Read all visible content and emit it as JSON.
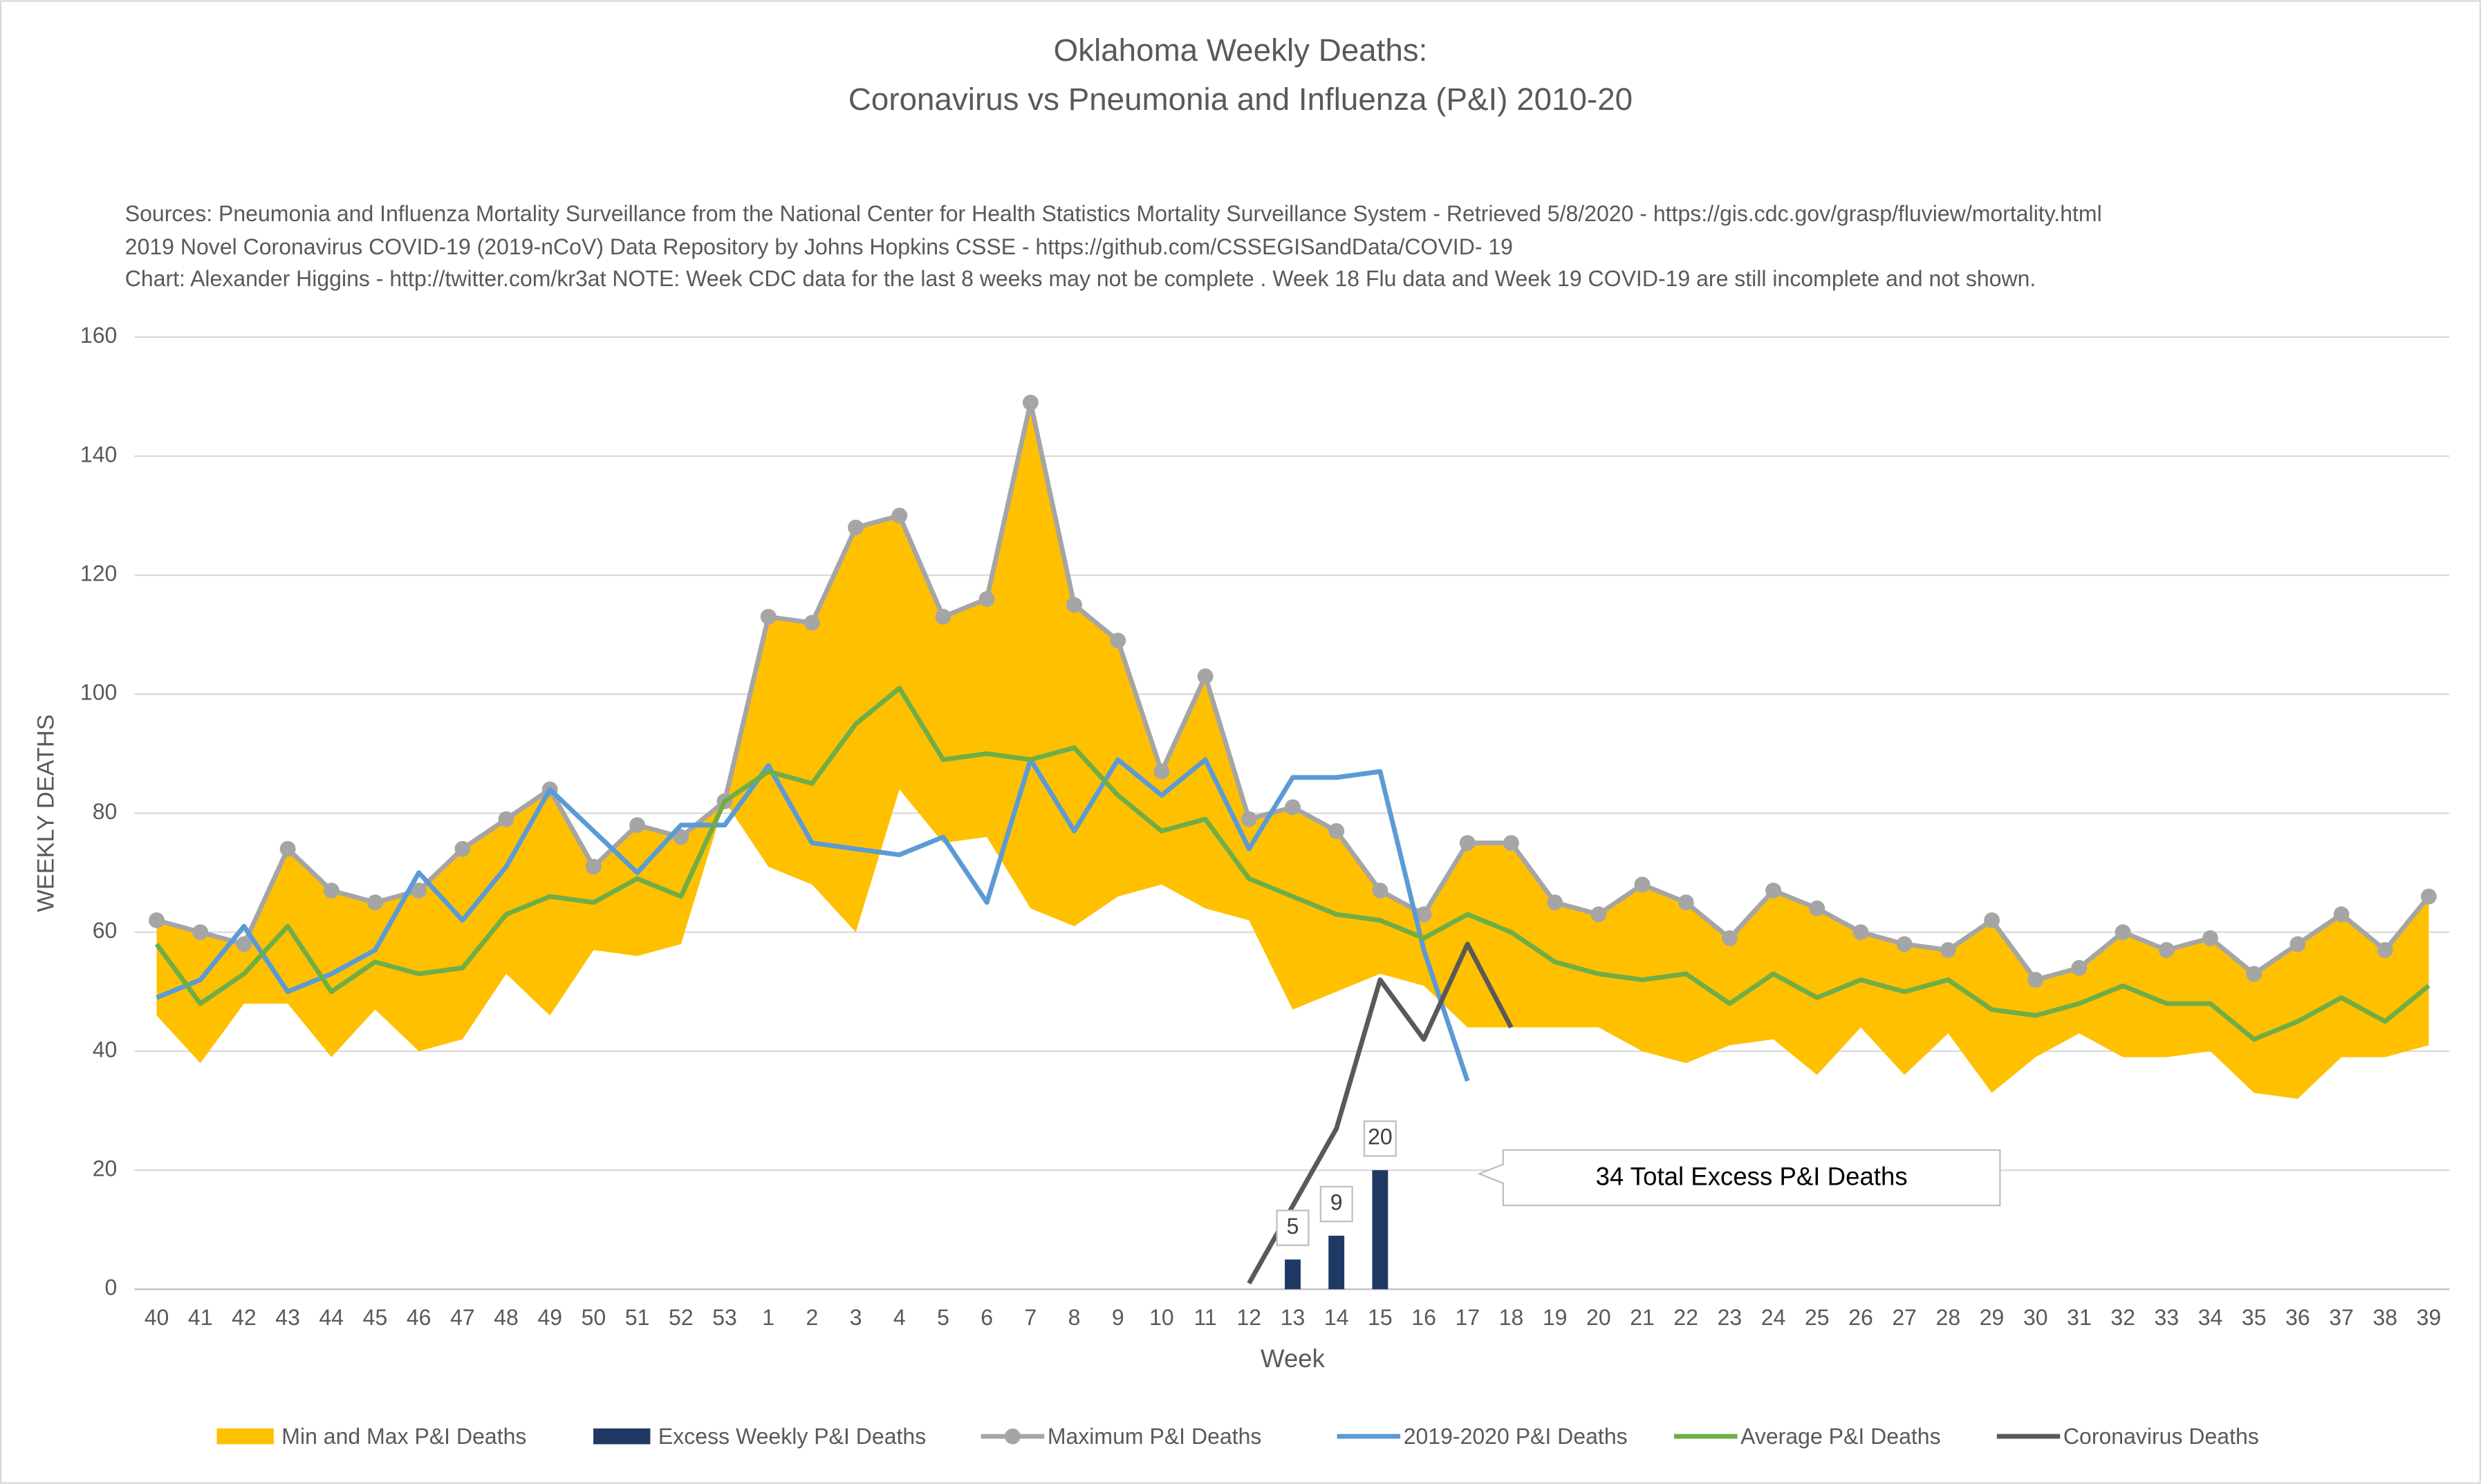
{
  "chart_data": {
    "type": "line",
    "title": [
      "Oklahoma Weekly Deaths:",
      "Coronavirus vs Pneumonia and Influenza (P&I) 2010-20"
    ],
    "subtitle": [
      "Sources: Pneumonia and Influenza Mortality Surveillance from the National Center for Health Statistics Mortality Surveillance System - Retrieved 5/8/2020 - https://gis.cdc.gov/grasp/fluview/mortality.html",
      "2019 Novel Coronavirus COVID-19 (2019-nCoV) Data Repository by Johns Hopkins CSSE - https://github.com/CSSEGISandData/COVID- 19",
      "Chart: Alexander Higgins - http://twitter.com/kr3at   NOTE: Week CDC data for the last 8 weeks may not be complete . Week 18 Flu data and Week 19 COVID-19 are still incomplete and not shown."
    ],
    "x_label": "Week",
    "y_label": "WEEKLY DEATHS",
    "annotation": "34 Total Excess P&I Deaths",
    "categories": [
      "40",
      "41",
      "42",
      "43",
      "44",
      "45",
      "46",
      "47",
      "48",
      "49",
      "50",
      "51",
      "52",
      "53",
      "1",
      "2",
      "3",
      "4",
      "5",
      "6",
      "7",
      "8",
      "9",
      "10",
      "11",
      "12",
      "13",
      "14",
      "15",
      "16",
      "17",
      "18",
      "19",
      "20",
      "21",
      "22",
      "23",
      "24",
      "25",
      "26",
      "27",
      "28",
      "29",
      "30",
      "31",
      "32",
      "33",
      "34",
      "35",
      "36",
      "37",
      "38",
      "39"
    ],
    "ylim": [
      0,
      160
    ],
    "yticks": [
      0,
      20,
      40,
      60,
      80,
      100,
      120,
      140,
      160
    ],
    "grid": true,
    "series": [
      {
        "name": "Min and Max P&I Deaths",
        "type": "range",
        "color": "#ffc000",
        "low": [
          46,
          38,
          48,
          48,
          39,
          47,
          40,
          42,
          53,
          46,
          57,
          56,
          58,
          82,
          71,
          68,
          60,
          84,
          75,
          76,
          64,
          61,
          66,
          68,
          64,
          62,
          47,
          50,
          53,
          51,
          44,
          44,
          44,
          44,
          40,
          38,
          41,
          42,
          36,
          44,
          36,
          43,
          33,
          39,
          43,
          39,
          39,
          40,
          33,
          32,
          39,
          39,
          41
        ],
        "high": [
          62,
          60,
          58,
          74,
          67,
          65,
          67,
          74,
          79,
          84,
          71,
          78,
          76,
          82,
          113,
          112,
          128,
          130,
          113,
          116,
          149,
          115,
          109,
          87,
          103,
          79,
          81,
          77,
          67,
          63,
          75,
          75,
          65,
          63,
          68,
          65,
          59,
          67,
          64,
          60,
          58,
          57,
          62,
          52,
          54,
          60,
          57,
          59,
          53,
          58,
          63,
          57,
          66
        ]
      },
      {
        "name": "Excess Weekly P&I Deaths",
        "type": "bar",
        "color": "#203864",
        "values": [
          null,
          null,
          null,
          null,
          null,
          null,
          null,
          null,
          null,
          null,
          null,
          null,
          null,
          null,
          null,
          null,
          null,
          null,
          null,
          null,
          null,
          null,
          null,
          null,
          null,
          null,
          5,
          9,
          20,
          null,
          null,
          null,
          null,
          null,
          null,
          null,
          null,
          null,
          null,
          null,
          null,
          null,
          null,
          null,
          null,
          null,
          null,
          null,
          null,
          null,
          null,
          null,
          null
        ]
      },
      {
        "name": "Maximum P&I Deaths",
        "type": "line",
        "markers": true,
        "color": "#a5a5a5",
        "values": [
          62,
          60,
          58,
          74,
          67,
          65,
          67,
          74,
          79,
          84,
          71,
          78,
          76,
          82,
          113,
          112,
          128,
          130,
          113,
          116,
          149,
          115,
          109,
          87,
          103,
          79,
          81,
          77,
          67,
          63,
          75,
          75,
          65,
          63,
          68,
          65,
          59,
          67,
          64,
          60,
          58,
          57,
          62,
          52,
          54,
          60,
          57,
          59,
          53,
          58,
          63,
          57,
          66
        ]
      },
      {
        "name": "2019-2020 P&I Deaths",
        "type": "line",
        "color": "#5b9bd5",
        "values": [
          49,
          52,
          61,
          50,
          53,
          57,
          70,
          62,
          71,
          84,
          77,
          70,
          78,
          78,
          88,
          75,
          74,
          73,
          76,
          65,
          89,
          77,
          89,
          83,
          89,
          74,
          86,
          86,
          87,
          57,
          35,
          null,
          null,
          null,
          null,
          null,
          null,
          null,
          null,
          null,
          null,
          null,
          null,
          null,
          null,
          null,
          null,
          null,
          null,
          null,
          null,
          null,
          null
        ]
      },
      {
        "name": "Average P&I Deaths",
        "type": "line",
        "color": "#70ad47",
        "values": [
          58,
          48,
          53,
          61,
          50,
          55,
          53,
          54,
          63,
          66,
          65,
          69,
          66,
          82,
          87,
          85,
          95,
          101,
          89,
          90,
          89,
          91,
          83,
          77,
          79,
          69,
          66,
          63,
          62,
          59,
          63,
          60,
          55,
          53,
          52,
          53,
          48,
          53,
          49,
          52,
          50,
          52,
          47,
          46,
          48,
          51,
          48,
          48,
          42,
          45,
          49,
          45,
          51
        ]
      },
      {
        "name": "Coronavirus Deaths",
        "type": "line",
        "color": "#595959",
        "values": [
          null,
          null,
          null,
          null,
          null,
          null,
          null,
          null,
          null,
          null,
          null,
          null,
          null,
          null,
          null,
          null,
          null,
          null,
          null,
          null,
          null,
          null,
          null,
          null,
          null,
          1,
          14,
          27,
          52,
          42,
          58,
          44,
          null,
          null,
          null,
          null,
          null,
          null,
          null,
          null,
          null,
          null,
          null,
          null,
          null,
          null,
          null,
          null,
          null,
          null,
          null,
          null,
          null
        ]
      }
    ]
  }
}
